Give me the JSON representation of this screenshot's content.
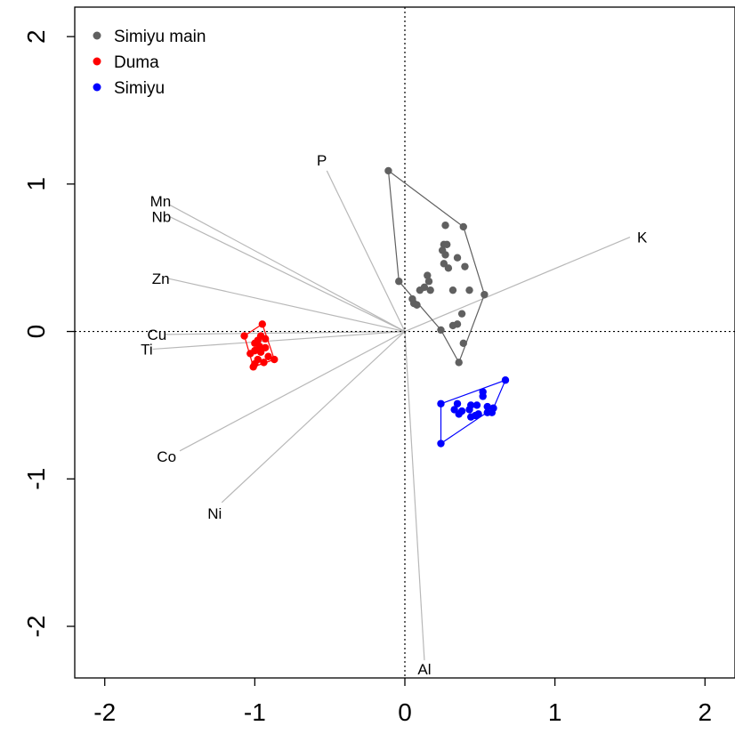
{
  "chart_data": {
    "type": "scatter",
    "title": "",
    "xlabel": "",
    "ylabel": "",
    "xlim": [
      -2.2,
      2.2
    ],
    "ylim": [
      -2.35,
      2.2
    ],
    "xticks": [
      -2,
      -1,
      0,
      1,
      2
    ],
    "yticks": [
      -2,
      -1,
      0,
      1,
      2
    ],
    "xtick_labels": [
      "-2",
      "-1",
      "0",
      "1",
      "2"
    ],
    "ytick_labels": [
      "-2",
      "-1",
      "0",
      "1",
      "2"
    ],
    "reference_lines": {
      "x": 0,
      "y": 0,
      "style": "dotted"
    },
    "legend": {
      "placement": "top-left"
    },
    "series": [
      {
        "name": "Simiyu main",
        "color": "#606060",
        "points": [
          [
            -0.11,
            1.09
          ],
          [
            0.27,
            0.72
          ],
          [
            0.39,
            0.71
          ],
          [
            0.26,
            0.59
          ],
          [
            0.28,
            0.59
          ],
          [
            0.25,
            0.55
          ],
          [
            0.27,
            0.52
          ],
          [
            0.35,
            0.5
          ],
          [
            0.26,
            0.46
          ],
          [
            0.29,
            0.43
          ],
          [
            0.4,
            0.44
          ],
          [
            0.15,
            0.38
          ],
          [
            0.16,
            0.34
          ],
          [
            -0.04,
            0.34
          ],
          [
            0.13,
            0.3
          ],
          [
            0.1,
            0.28
          ],
          [
            0.17,
            0.28
          ],
          [
            0.32,
            0.28
          ],
          [
            0.43,
            0.28
          ],
          [
            0.53,
            0.25
          ],
          [
            0.05,
            0.22
          ],
          [
            0.06,
            0.19
          ],
          [
            0.08,
            0.18
          ],
          [
            0.38,
            0.12
          ],
          [
            0.35,
            0.05
          ],
          [
            0.32,
            0.04
          ],
          [
            0.24,
            0.01
          ],
          [
            0.39,
            -0.08
          ],
          [
            0.36,
            -0.21
          ]
        ],
        "hull": [
          [
            -0.11,
            1.09
          ],
          [
            0.39,
            0.71
          ],
          [
            0.53,
            0.25
          ],
          [
            0.36,
            -0.21
          ],
          [
            0.24,
            0.01
          ],
          [
            -0.04,
            0.34
          ]
        ]
      },
      {
        "name": "Duma",
        "color": "#ff0000",
        "points": [
          [
            -0.95,
            0.05
          ],
          [
            -1.07,
            -0.03
          ],
          [
            -0.96,
            -0.03
          ],
          [
            -0.93,
            -0.05
          ],
          [
            -0.98,
            -0.06
          ],
          [
            -1.0,
            -0.08
          ],
          [
            -0.97,
            -0.1
          ],
          [
            -0.93,
            -0.11
          ],
          [
            -1.0,
            -0.13
          ],
          [
            -1.03,
            -0.15
          ],
          [
            -0.96,
            -0.14
          ],
          [
            -0.91,
            -0.17
          ],
          [
            -0.87,
            -0.19
          ],
          [
            -0.98,
            -0.19
          ],
          [
            -0.94,
            -0.21
          ],
          [
            -1.0,
            -0.22
          ],
          [
            -1.01,
            -0.24
          ]
        ],
        "hull": [
          [
            -0.95,
            0.05
          ],
          [
            -0.92,
            -0.04
          ],
          [
            -0.87,
            -0.19
          ],
          [
            -1.01,
            -0.24
          ],
          [
            -1.07,
            -0.03
          ]
        ]
      },
      {
        "name": "Simiyu",
        "color": "#0000ff",
        "points": [
          [
            0.67,
            -0.33
          ],
          [
            0.52,
            -0.41
          ],
          [
            0.52,
            -0.44
          ],
          [
            0.24,
            -0.49
          ],
          [
            0.35,
            -0.49
          ],
          [
            0.44,
            -0.5
          ],
          [
            0.48,
            -0.5
          ],
          [
            0.55,
            -0.51
          ],
          [
            0.59,
            -0.52
          ],
          [
            0.33,
            -0.53
          ],
          [
            0.43,
            -0.53
          ],
          [
            0.38,
            -0.54
          ],
          [
            0.55,
            -0.55
          ],
          [
            0.49,
            -0.56
          ],
          [
            0.58,
            -0.55
          ],
          [
            0.36,
            -0.56
          ],
          [
            0.47,
            -0.57
          ],
          [
            0.44,
            -0.58
          ],
          [
            0.24,
            -0.76
          ]
        ],
        "hull": [
          [
            0.67,
            -0.33
          ],
          [
            0.59,
            -0.52
          ],
          [
            0.24,
            -0.76
          ],
          [
            0.24,
            -0.49
          ]
        ]
      }
    ],
    "loadings": [
      {
        "label": "P",
        "x": -0.52,
        "y": 1.09
      },
      {
        "label": "Mn",
        "x": -1.57,
        "y": 0.86
      },
      {
        "label": "Nb",
        "x": -1.57,
        "y": 0.78
      },
      {
        "label": "Zn",
        "x": -1.58,
        "y": 0.36
      },
      {
        "label": "Cu",
        "x": -1.6,
        "y": -0.02
      },
      {
        "label": "Ti",
        "x": -1.68,
        "y": -0.12
      },
      {
        "label": "Co",
        "x": -1.5,
        "y": -0.81
      },
      {
        "label": "Ni",
        "x": -1.22,
        "y": -1.16
      },
      {
        "label": "K",
        "x": 1.5,
        "y": 0.64
      },
      {
        "label": "Al",
        "x": 0.13,
        "y": -2.23
      }
    ],
    "loading_line_color": "#b8b8b8",
    "axis_line_color": "#000000"
  }
}
